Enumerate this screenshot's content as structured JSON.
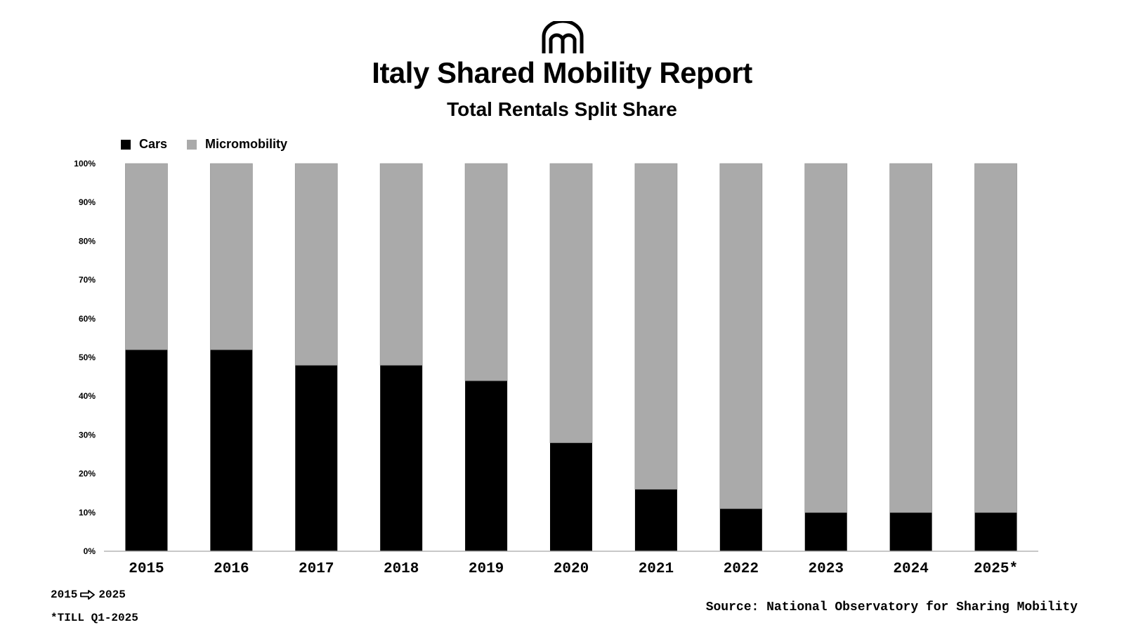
{
  "header": {
    "logo_icon": "mobility-arches-icon",
    "title": "Italy Shared Mobility Report",
    "subtitle": "Total Rentals Split Share"
  },
  "legend": [
    {
      "label": "Cars",
      "color": "#000000"
    },
    {
      "label": "Micromobility",
      "color": "#aaaaaa"
    }
  ],
  "footer": {
    "range_start": "2015",
    "range_icon": "right-arrow-icon",
    "range_end": "2025",
    "note": "*TILL Q1-2025",
    "source": "Source: National Observatory for Sharing Mobility"
  },
  "chart_data": {
    "type": "bar",
    "stacked": true,
    "title": "Italy Shared Mobility Report",
    "subtitle": "Total Rentals Split Share",
    "xlabel": "",
    "ylabel": "",
    "ylim": [
      0,
      100
    ],
    "yticks": [
      "0%",
      "10%",
      "20%",
      "30%",
      "40%",
      "50%",
      "60%",
      "70%",
      "80%",
      "90%",
      "100%"
    ],
    "grid": false,
    "legend_position": "top-left",
    "categories": [
      "2015",
      "2016",
      "2017",
      "2018",
      "2019",
      "2020",
      "2021",
      "2022",
      "2023",
      "2024",
      "2025*"
    ],
    "series": [
      {
        "name": "Cars",
        "color": "#000000",
        "values": [
          52,
          52,
          48,
          48,
          44,
          28,
          16,
          11,
          10,
          10,
          10
        ]
      },
      {
        "name": "Micromobility",
        "color": "#aaaaaa",
        "values": [
          48,
          48,
          52,
          52,
          56,
          72,
          84,
          89,
          90,
          90,
          90
        ]
      }
    ]
  }
}
